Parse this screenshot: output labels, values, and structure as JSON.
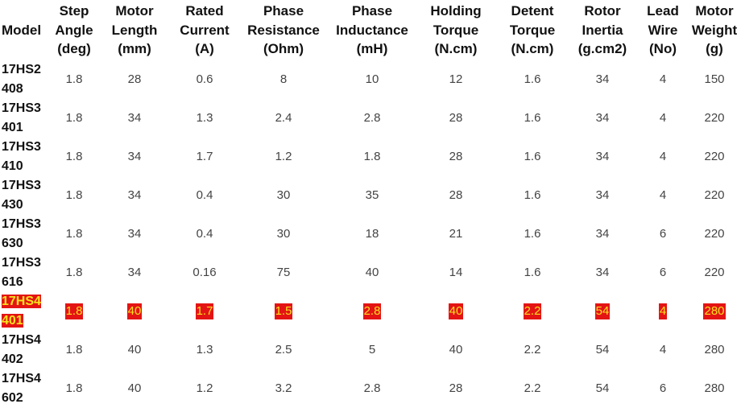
{
  "columns": [
    "Model",
    "Step\nAngle\n(deg)",
    "Motor\nLength\n(mm)",
    "Rated\nCurrent\n(A)",
    "Phase\nResistance\n(Ohm)",
    "Phase\nInductance\n(mH)",
    "Holding\nTorque\n(N.cm)",
    "Detent\nTorque\n(N.cm)",
    "Rotor\nInertia\n(g.cm2)",
    "Lead\nWire\n(No)",
    "Motor\nWeight\n(g)"
  ],
  "rows": [
    {
      "model": "17HS2\n408",
      "values": [
        "1.8",
        "28",
        "0.6",
        "8",
        "10",
        "12",
        "1.6",
        "34",
        "4",
        "150"
      ],
      "highlighted": false
    },
    {
      "model": "17HS3\n401",
      "values": [
        "1.8",
        "34",
        "1.3",
        "2.4",
        "2.8",
        "28",
        "1.6",
        "34",
        "4",
        "220"
      ],
      "highlighted": false
    },
    {
      "model": "17HS3\n410",
      "values": [
        "1.8",
        "34",
        "1.7",
        "1.2",
        "1.8",
        "28",
        "1.6",
        "34",
        "4",
        "220"
      ],
      "highlighted": false
    },
    {
      "model": "17HS3\n430",
      "values": [
        "1.8",
        "34",
        "0.4",
        "30",
        "35",
        "28",
        "1.6",
        "34",
        "4",
        "220"
      ],
      "highlighted": false
    },
    {
      "model": "17HS3\n630",
      "values": [
        "1.8",
        "34",
        "0.4",
        "30",
        "18",
        "21",
        "1.6",
        "34",
        "6",
        "220"
      ],
      "highlighted": false
    },
    {
      "model": "17HS3\n616",
      "values": [
        "1.8",
        "34",
        "0.16",
        "75",
        "40",
        "14",
        "1.6",
        "34",
        "6",
        "220"
      ],
      "highlighted": false
    },
    {
      "model": "17HS4\n401",
      "values": [
        "1.8",
        "40",
        "1.7",
        "1.5",
        "2.8",
        "40",
        "2.2",
        "54",
        "4",
        "280"
      ],
      "highlighted": true
    },
    {
      "model": "17HS4\n402",
      "values": [
        "1.8",
        "40",
        "1.3",
        "2.5",
        "5",
        "40",
        "2.2",
        "54",
        "4",
        "280"
      ],
      "highlighted": false
    },
    {
      "model": "17HS4\n602",
      "values": [
        "1.8",
        "40",
        "1.2",
        "3.2",
        "2.8",
        "28",
        "2.2",
        "54",
        "6",
        "280"
      ],
      "highlighted": false
    }
  ],
  "colors": {
    "highlight_background": "#e41414",
    "highlight_text": "#f7e31c"
  }
}
